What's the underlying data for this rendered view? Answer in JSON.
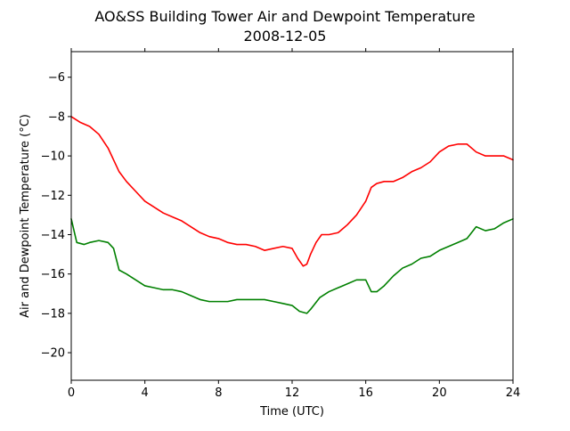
{
  "chart_data": {
    "type": "line",
    "title_line1": "AO&SS Building Tower Air and Dewpoint Temperature",
    "title_line2": "2008-12-05",
    "xlabel": "Time (UTC)",
    "ylabel": "Air and Dewpoint Temperature (°C)",
    "xlim": [
      0,
      24
    ],
    "ylim": [
      -21.4,
      -4.7
    ],
    "xticks": [
      "0",
      "4",
      "8",
      "12",
      "16",
      "20",
      "24"
    ],
    "xtick_values": [
      0,
      4,
      8,
      12,
      16,
      20,
      24
    ],
    "yticks": [
      "−20",
      "−18",
      "−16",
      "−14",
      "−12",
      "−10",
      "−8",
      "−6"
    ],
    "ytick_values": [
      -20,
      -18,
      -16,
      -14,
      -12,
      -10,
      -8,
      -6
    ],
    "grid": false,
    "series": [
      {
        "color": "#ff0000",
        "x": [
          0,
          0.5,
          1,
          1.5,
          2,
          2.3,
          2.6,
          3,
          3.5,
          4,
          4.5,
          5,
          5.5,
          6,
          6.5,
          7,
          7.5,
          8,
          8.5,
          9,
          9.5,
          10,
          10.5,
          11,
          11.5,
          12,
          12.3,
          12.6,
          12.8,
          13,
          13.3,
          13.6,
          14,
          14.5,
          15,
          15.5,
          16,
          16.3,
          16.6,
          17,
          17.5,
          18,
          18.5,
          19,
          19.5,
          20,
          20.5,
          21,
          21.5,
          22,
          22.5,
          23,
          23.5,
          24
        ],
        "y": [
          -8.0,
          -8.3,
          -8.5,
          -8.9,
          -9.6,
          -10.2,
          -10.8,
          -11.3,
          -11.8,
          -12.3,
          -12.6,
          -12.9,
          -13.1,
          -13.3,
          -13.6,
          -13.9,
          -14.1,
          -14.2,
          -14.4,
          -14.5,
          -14.5,
          -14.6,
          -14.8,
          -14.7,
          -14.6,
          -14.7,
          -15.2,
          -15.6,
          -15.5,
          -15.0,
          -14.4,
          -14.0,
          -14.0,
          -13.9,
          -13.5,
          -13.0,
          -12.3,
          -11.6,
          -11.4,
          -11.3,
          -11.3,
          -11.1,
          -10.8,
          -10.6,
          -10.3,
          -9.8,
          -9.5,
          -9.4,
          -9.4,
          -9.8,
          -10.0,
          -10.0,
          -10.0,
          -10.2
        ]
      },
      {
        "color": "#008000",
        "x": [
          0,
          0.3,
          0.7,
          1,
          1.5,
          2,
          2.3,
          2.6,
          3,
          3.5,
          4,
          4.5,
          5,
          5.5,
          6,
          6.5,
          7,
          7.5,
          8,
          8.5,
          9,
          9.5,
          10,
          10.5,
          11,
          11.5,
          12,
          12.4,
          12.8,
          13,
          13.5,
          14,
          14.5,
          15,
          15.5,
          16,
          16.3,
          16.6,
          17,
          17.5,
          18,
          18.5,
          19,
          19.5,
          20,
          20.5,
          21,
          21.5,
          22,
          22.5,
          23,
          23.5,
          24
        ],
        "y": [
          -13.2,
          -14.4,
          -14.5,
          -14.4,
          -14.3,
          -14.4,
          -14.7,
          -15.8,
          -16.0,
          -16.3,
          -16.6,
          -16.7,
          -16.8,
          -16.8,
          -16.9,
          -17.1,
          -17.3,
          -17.4,
          -17.4,
          -17.4,
          -17.3,
          -17.3,
          -17.3,
          -17.3,
          -17.4,
          -17.5,
          -17.6,
          -17.9,
          -18.0,
          -17.8,
          -17.2,
          -16.9,
          -16.7,
          -16.5,
          -16.3,
          -16.3,
          -16.9,
          -16.9,
          -16.6,
          -16.1,
          -15.7,
          -15.5,
          -15.2,
          -15.1,
          -14.8,
          -14.6,
          -14.4,
          -14.2,
          -13.6,
          -13.8,
          -13.7,
          -13.4,
          -13.2
        ]
      }
    ]
  }
}
